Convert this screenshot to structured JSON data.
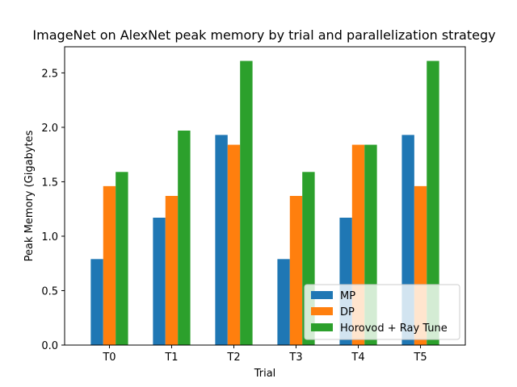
{
  "chart_data": {
    "type": "bar",
    "title": "ImageNet on AlexNet peak memory by trial and parallelization strategy",
    "xlabel": "Trial",
    "ylabel": "Peak Memory (Gigabytes",
    "categories": [
      "T0",
      "T1",
      "T2",
      "T3",
      "T4",
      "T5"
    ],
    "series": [
      {
        "name": "MP",
        "values": [
          0.79,
          1.17,
          1.93,
          0.79,
          1.17,
          1.93
        ],
        "color": "#1f77b4"
      },
      {
        "name": "DP",
        "values": [
          1.46,
          1.37,
          1.84,
          1.37,
          1.84,
          1.46
        ],
        "color": "#ff7f0e"
      },
      {
        "name": "Horovod + Ray Tune",
        "values": [
          1.59,
          1.97,
          2.61,
          1.59,
          1.84,
          2.61
        ],
        "color": "#2ca02c"
      }
    ],
    "ylim": [
      0,
      2.74
    ],
    "yticks": [
      0.0,
      0.5,
      1.0,
      1.5,
      2.0,
      2.5
    ],
    "ytick_labels": [
      "0.0",
      "0.5",
      "1.0",
      "1.5",
      "2.0",
      "2.5"
    ],
    "grid": false,
    "legend_position": "lower right"
  }
}
